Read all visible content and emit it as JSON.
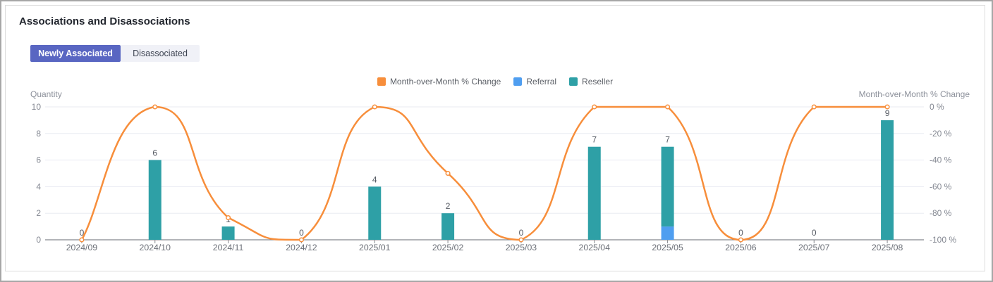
{
  "page": {
    "title": "Associations and Disassociations"
  },
  "tabs": [
    {
      "label": "Newly Associated",
      "active": true
    },
    {
      "label": "Disassociated",
      "active": false
    }
  ],
  "chart_data": {
    "type": "combo-bar-line",
    "categories": [
      "2024/09",
      "2024/10",
      "2024/11",
      "2024/12",
      "2025/01",
      "2025/02",
      "2025/03",
      "2025/04",
      "2025/05",
      "2025/06",
      "2025/07",
      "2025/08"
    ],
    "series": [
      {
        "name": "Month-over-Month % Change",
        "type": "line",
        "axis": "right",
        "color": "#F78E3B",
        "values": [
          -100,
          0,
          -83.33,
          -100,
          0,
          -50,
          -100,
          0,
          0,
          -100,
          0,
          0
        ]
      },
      {
        "name": "Referral",
        "type": "bar",
        "stack": "total",
        "color": "#4F9EF0",
        "values": [
          0,
          0,
          0,
          0,
          0,
          0,
          0,
          0,
          1,
          0,
          0,
          0
        ]
      },
      {
        "name": "Reseller",
        "type": "bar",
        "stack": "total",
        "color": "#2EA0A6",
        "values": [
          0,
          6,
          1,
          0,
          4,
          2,
          0,
          7,
          6,
          0,
          0,
          9
        ]
      }
    ],
    "bar_total_labels": [
      "0",
      "6",
      "1",
      "0",
      "4",
      "2",
      "0",
      "7",
      "7",
      "0",
      "0",
      "9"
    ],
    "left_axis": {
      "name": "Quantity",
      "min": 0,
      "max": 10,
      "ticks": [
        0,
        2,
        4,
        6,
        8,
        10
      ]
    },
    "right_axis": {
      "name": "Month-over-Month % Change",
      "min": -100,
      "max": 0,
      "tick_labels": [
        "0 %",
        "-20 %",
        "-40 %",
        "-60 %",
        "-80 %",
        "-100 %"
      ]
    },
    "legend": [
      "Month-over-Month % Change",
      "Referral",
      "Reseller"
    ],
    "grid": true,
    "legend_position": "top-center"
  },
  "colors": {
    "active_tab": "#5966C2",
    "grid_line": "#E9EBF2",
    "axis_line": "#85888E",
    "tick_label": "#848892",
    "x_label": "#6B6F77",
    "bar_label": "#555A63"
  }
}
